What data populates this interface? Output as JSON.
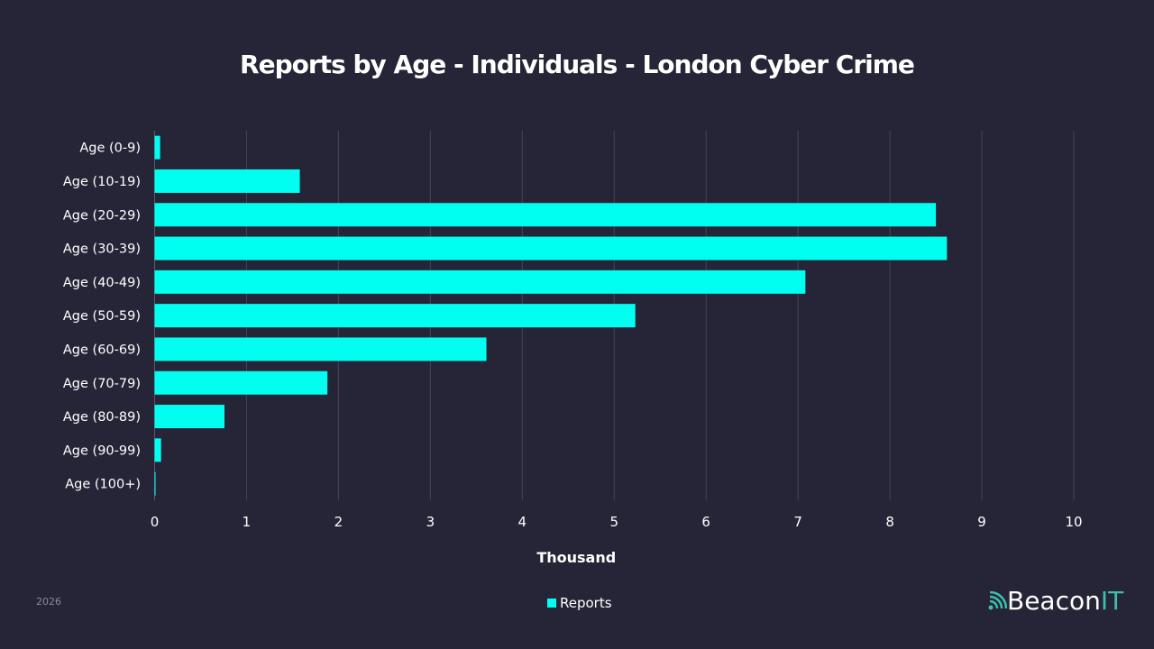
{
  "chart_data": {
    "type": "bar",
    "orientation": "horizontal",
    "title": "Reports by Age - Individuals - London Cyber Crime",
    "categories": [
      "Age (0-9)",
      "Age (10-19)",
      "Age (20-29)",
      "Age (30-39)",
      "Age (40-49)",
      "Age (50-59)",
      "Age (60-69)",
      "Age (70-79)",
      "Age (80-89)",
      "Age (90-99)",
      "Age (100+)"
    ],
    "series": [
      {
        "name": "Reports",
        "values": [
          0.06,
          1.58,
          8.5,
          8.62,
          7.08,
          5.23,
          3.61,
          1.88,
          0.76,
          0.07,
          0.01
        ],
        "color": "#00fff0"
      }
    ],
    "xlabel": "Thousand",
    "ylabel": "",
    "xlim": [
      0,
      10
    ],
    "xticks": [
      "0",
      "1",
      "2",
      "3",
      "4",
      "5",
      "6",
      "7",
      "8",
      "9",
      "10"
    ],
    "grid": true,
    "legend": "bottom-center"
  },
  "footer": {
    "year": "2026",
    "logo_main": "Beacon",
    "logo_accent": "IT"
  }
}
